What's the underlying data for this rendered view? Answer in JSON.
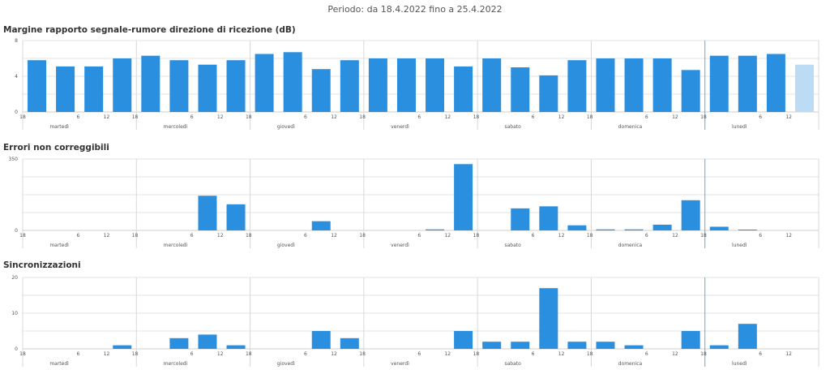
{
  "header": {
    "period": "Periodo: da 18.4.2022 fino a 25.4.2022"
  },
  "colors": {
    "bar": "#2b8fe0",
    "bar_partial": "#bcdcf5",
    "grid": "#e3e3e3",
    "day_line": "#d8d8d8",
    "now_line": "#6aa8c8"
  },
  "x_labels": {
    "hours": [
      "18",
      "6",
      "12",
      "18",
      "6",
      "12",
      "18",
      "6",
      "12",
      "18",
      "6",
      "12",
      "18",
      "6",
      "12",
      "18",
      "6",
      "12",
      "18",
      "6",
      "12"
    ],
    "days": [
      "martedì",
      "mercoledì",
      "giovedì",
      "venerdì",
      "sabato",
      "domenica",
      "lunedì"
    ]
  },
  "chart_data": [
    {
      "type": "bar",
      "title": "Margine rapporto segnale-rumore direzione di ricezione (dB)",
      "ylim": [
        0,
        8
      ],
      "yticks": [
        "0",
        "4",
        "8"
      ],
      "grid": true,
      "values": [
        5.8,
        5.1,
        5.1,
        6.0,
        6.3,
        5.8,
        5.3,
        5.8,
        6.5,
        6.7,
        4.8,
        5.8,
        6.0,
        6.0,
        6.0,
        5.1,
        6.0,
        5.0,
        4.1,
        5.8,
        6.0,
        6.0,
        6.0,
        4.7,
        6.3,
        6.3,
        6.5,
        5.3
      ],
      "partial_last": true
    },
    {
      "type": "bar",
      "title": "Errori non correggibili",
      "ylim": [
        0,
        350
      ],
      "yticks": [
        "0",
        "350"
      ],
      "grid": true,
      "values": [
        0,
        0,
        0,
        0,
        0,
        0,
        170,
        128,
        0,
        0,
        45,
        0,
        0,
        0,
        5,
        325,
        0,
        108,
        118,
        25,
        5,
        5,
        28,
        148,
        18,
        4,
        0,
        0
      ],
      "partial_last": false
    },
    {
      "type": "bar",
      "title": "Sincronizzazioni",
      "ylim": [
        0,
        20
      ],
      "yticks": [
        "0",
        "10",
        "20"
      ],
      "grid": true,
      "values": [
        0,
        0,
        0,
        1,
        0,
        3,
        4,
        1,
        0,
        0,
        5,
        3,
        0,
        0,
        0,
        5,
        2,
        2,
        17,
        2,
        2,
        1,
        0,
        5,
        1,
        7,
        0,
        0
      ],
      "partial_last": false
    }
  ]
}
